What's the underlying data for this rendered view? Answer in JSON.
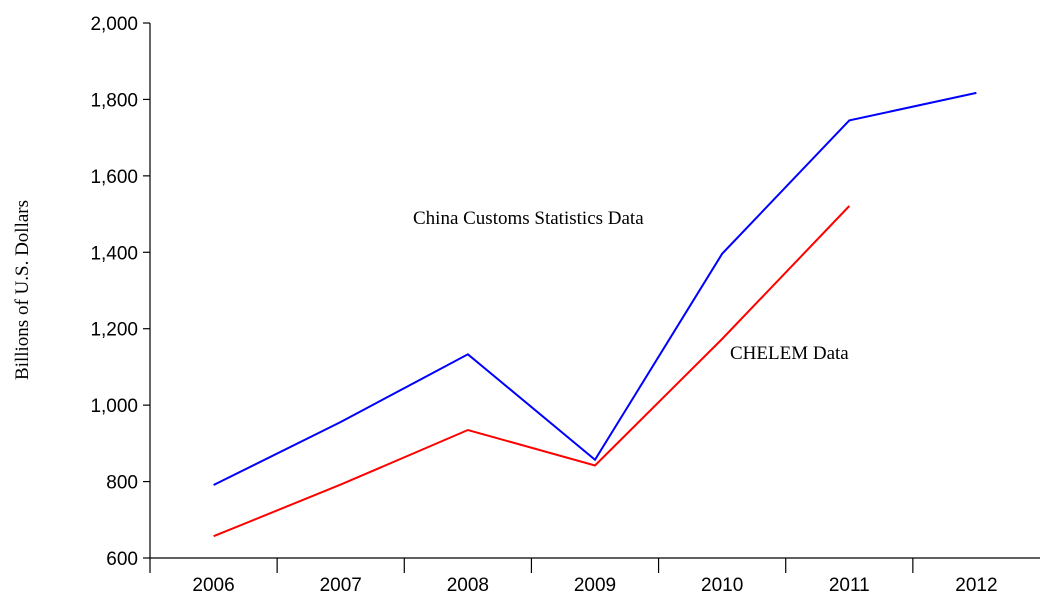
{
  "chart_data": {
    "type": "line",
    "title": "",
    "xlabel": "",
    "ylabel": "Billions of U.S. Dollars",
    "categories": [
      "2006",
      "2007",
      "2008",
      "2009",
      "2010",
      "2011",
      "2012"
    ],
    "ylim": [
      600,
      2000
    ],
    "yticks": [
      600,
      800,
      1000,
      1200,
      1400,
      1600,
      1800,
      2000
    ],
    "ytick_labels": [
      "600",
      "800",
      "1,000",
      "1,200",
      "1,400",
      "1,600",
      "1,800",
      "2,000"
    ],
    "grid": false,
    "legend": "none",
    "series": [
      {
        "name": "China Customs Statistics Data",
        "color": "#0000ff",
        "values": [
          791,
          956,
          1133,
          857,
          1396,
          1745,
          1817
        ]
      },
      {
        "name": "CHELEM Data",
        "color": "#ff0000",
        "values": [
          657,
          792,
          935,
          842,
          1173,
          1521,
          null
        ]
      }
    ],
    "annotations": [
      {
        "text": "China Customs Statistics Data",
        "series": 0
      },
      {
        "text": "CHELEM Data",
        "series": 1
      }
    ]
  }
}
